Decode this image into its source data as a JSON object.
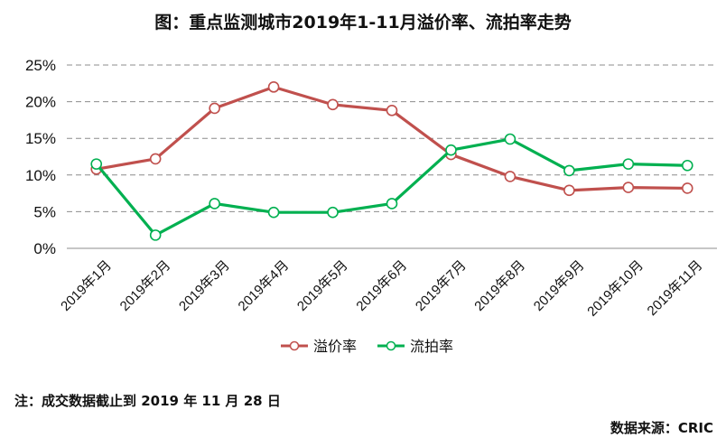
{
  "chart_data": {
    "type": "line",
    "title": "图：重点监测城市2019年1-11月溢价率、流拍率走势",
    "xlabel": "",
    "ylabel": "",
    "categories": [
      "2019年1月",
      "2019年2月",
      "2019年3月",
      "2019年4月",
      "2019年5月",
      "2019年6月",
      "2019年7月",
      "2019年8月",
      "2019年9月",
      "2019年10月",
      "2019年11月"
    ],
    "series": [
      {
        "name": "溢价率",
        "color": "#c0504d",
        "values": [
          10.8,
          12.2,
          19.1,
          22.0,
          19.6,
          18.8,
          12.8,
          9.8,
          7.9,
          8.3,
          8.2
        ]
      },
      {
        "name": "流拍率",
        "color": "#00b050",
        "values": [
          11.5,
          1.8,
          6.1,
          4.9,
          4.9,
          6.1,
          13.4,
          14.9,
          10.6,
          11.5,
          11.3
        ]
      }
    ],
    "ylim": [
      0,
      25
    ],
    "yticks": [
      "0%",
      "5%",
      "10%",
      "15%",
      "20%",
      "25%"
    ],
    "ytick_values": [
      0,
      5,
      10,
      15,
      20,
      25
    ],
    "grid": true,
    "legend": "bottom"
  },
  "footer": {
    "note": "注：成交数据截止到 2019 年 11 月 28 日",
    "source": "数据来源：CRIC"
  }
}
